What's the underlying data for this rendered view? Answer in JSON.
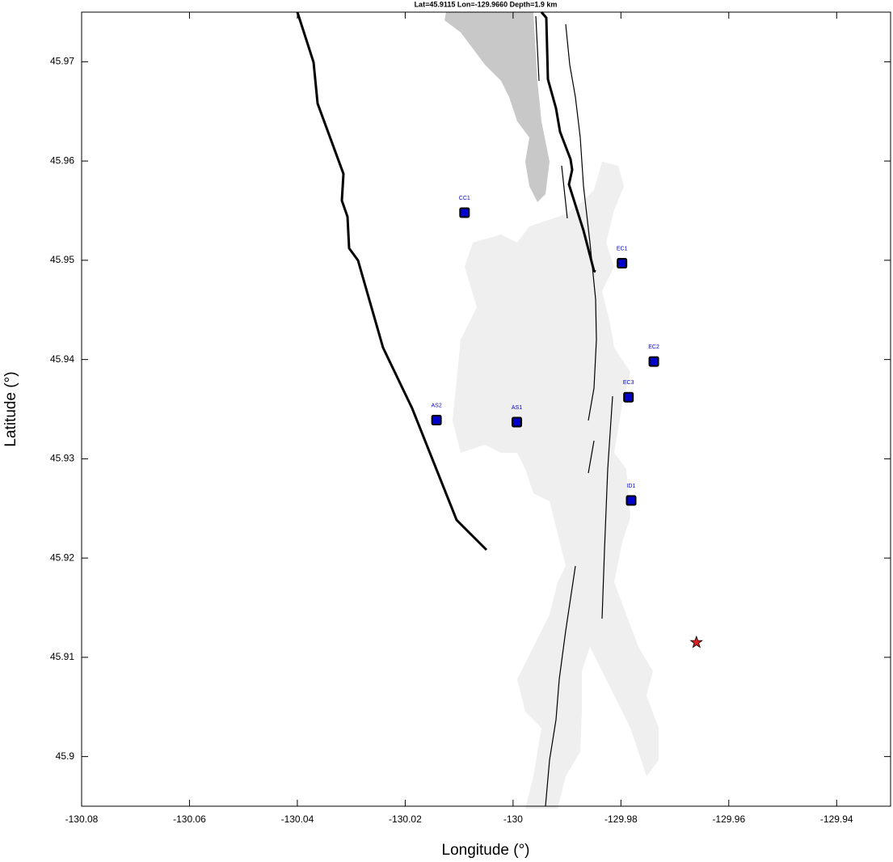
{
  "chart_data": {
    "type": "scatter",
    "title": "Lat=45.9115  Lon=-129.9660  Depth=1.9 km",
    "x_label": "Longitude (°)",
    "y_label": "Latitude (°)",
    "xlim": [
      -130.08,
      -129.93
    ],
    "ylim": [
      45.895,
      45.975
    ],
    "xticks": [
      -130.08,
      -130.06,
      -130.04,
      -130.02,
      -130,
      -129.98,
      -129.96,
      -129.94
    ],
    "yticks": [
      45.9,
      45.91,
      45.92,
      45.93,
      45.94,
      45.95,
      45.96,
      45.97
    ],
    "stations": {
      "color": "#0000cc",
      "labels": [
        "CC1",
        "EC1",
        "EC2",
        "EC3",
        "AS2",
        "AS1",
        "ID1"
      ],
      "x": [
        -130.009,
        -129.9798,
        -129.9739,
        -129.9786,
        -130.0142,
        -129.9993,
        -129.9781
      ],
      "y": [
        45.9548,
        45.9497,
        45.9398,
        45.9362,
        45.9339,
        45.9337,
        45.9258
      ]
    },
    "event": {
      "color": "#e02020",
      "x": -129.966,
      "y": 45.9115
    }
  }
}
